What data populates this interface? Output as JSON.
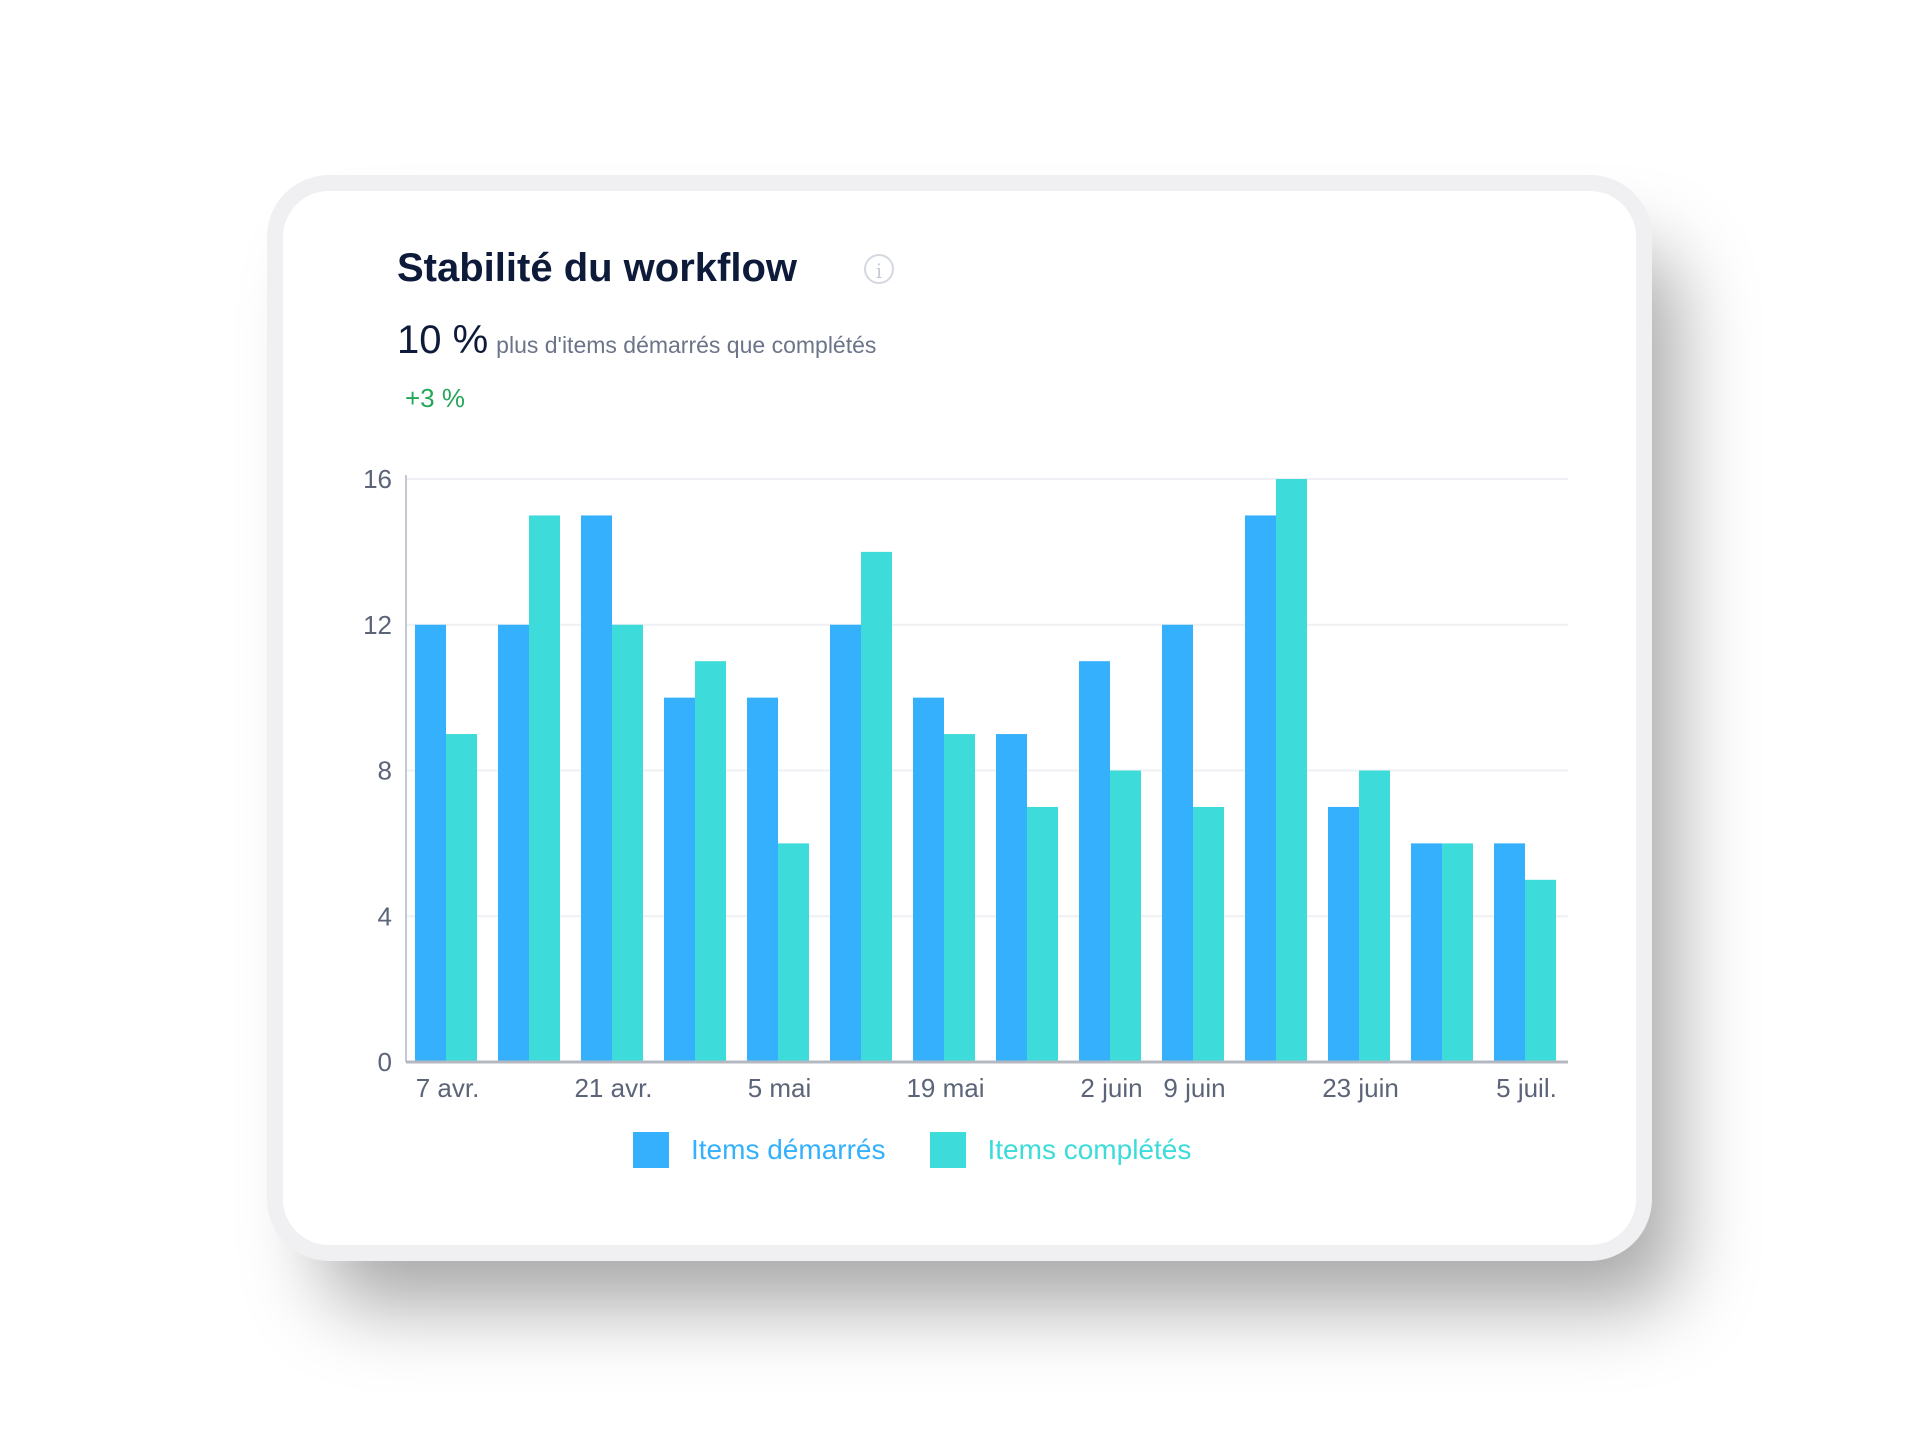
{
  "card": {
    "title": "Stabilité du workflow",
    "info_icon": "info-circle-icon",
    "kpi_value": "10 %",
    "kpi_description": "plus d'items démarrés que complétés",
    "delta": "+3 %"
  },
  "colors": {
    "started": "#35b0fc",
    "completed": "#3ddbd9",
    "delta_positive": "#26a65b"
  },
  "chart_data": {
    "type": "bar",
    "title": "Stabilité du workflow",
    "categories": [
      "7 avr.",
      "",
      "21 avr.",
      "",
      "5 mai",
      "",
      "19 mai",
      "",
      "2 juin",
      "9 juin",
      "",
      "23 juin",
      "",
      "5 juil."
    ],
    "series": [
      {
        "name": "Items démarrés",
        "values": [
          12,
          12,
          15,
          10,
          10,
          12,
          10,
          9,
          11,
          12,
          15,
          7,
          6,
          6
        ]
      },
      {
        "name": "Items complétés",
        "values": [
          9,
          15,
          12,
          11,
          6,
          14,
          9,
          7,
          8,
          7,
          16,
          8,
          6,
          5
        ]
      }
    ],
    "yticks": [
      0,
      4,
      8,
      12,
      16
    ],
    "ylim": [
      0,
      16
    ],
    "xlabel": "",
    "ylabel": "",
    "grid": true,
    "legend": "bottom-center"
  }
}
